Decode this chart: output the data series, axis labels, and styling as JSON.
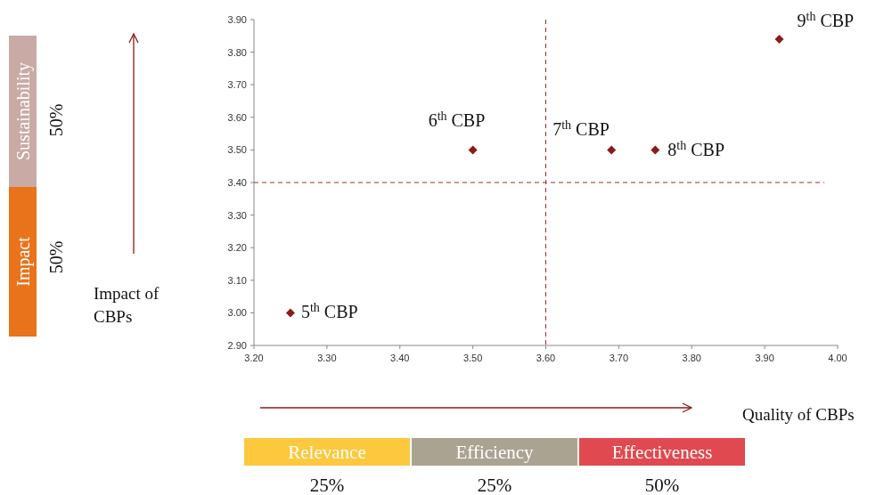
{
  "chart_data": {
    "type": "scatter",
    "xlabel": "Quality of CBPs",
    "ylabel": "Impact of CBPs",
    "x": [
      3.25,
      3.5,
      3.69,
      3.75,
      3.92
    ],
    "values": [
      3.0,
      3.5,
      3.5,
      3.5,
      3.84
    ],
    "color": "#8b1a1a",
    "marker": "diamond",
    "grid": false,
    "xlim": [
      3.2,
      4.0
    ],
    "xticks": [
      {
        "value": 3.2,
        "label": "3.20"
      },
      {
        "value": 3.3,
        "label": "3.30"
      },
      {
        "value": 3.4,
        "label": "3.40"
      },
      {
        "value": 3.5,
        "label": "3.50"
      },
      {
        "value": 3.6,
        "label": "3.60"
      },
      {
        "value": 3.7,
        "label": "3.70"
      },
      {
        "value": 3.8,
        "label": "3.80"
      },
      {
        "value": 3.9,
        "label": "3.90"
      },
      {
        "value": 4.0,
        "label": "4.00"
      }
    ],
    "ylim": [
      2.9,
      3.9
    ],
    "yticks": [
      {
        "value": 2.9,
        "label": "2.90"
      },
      {
        "value": 3.0,
        "label": "3.00"
      },
      {
        "value": 3.1,
        "label": "3.10"
      },
      {
        "value": 3.2,
        "label": "3.20"
      },
      {
        "value": 3.3,
        "label": "3.30"
      },
      {
        "value": 3.4,
        "label": "3.40"
      },
      {
        "value": 3.5,
        "label": "3.50"
      },
      {
        "value": 3.6,
        "label": "3.60"
      },
      {
        "value": 3.7,
        "label": "3.70"
      },
      {
        "value": 3.8,
        "label": "3.80"
      },
      {
        "value": 3.9,
        "label": "3.90"
      }
    ],
    "ref_lines": [
      {
        "axis": "x",
        "value": 3.6,
        "color": "#a0302a",
        "line_style": "dashed"
      },
      {
        "axis": "y",
        "value": 3.4,
        "color": "#a0302a",
        "line_style": "dashed"
      }
    ],
    "annotations": [
      {
        "text": "5$^{th}$ CBP",
        "x": 3.25,
        "y": 3.0
      },
      {
        "text": "6$^{th}$ CBP",
        "x": 3.5,
        "y": 3.5
      },
      {
        "text": "7$^{th}$ CBP",
        "x": 3.69,
        "y": 3.5
      },
      {
        "text": "8$^{th}$ CBP",
        "x": 3.75,
        "y": 3.5
      },
      {
        "text": "9$^{th}$ CBP",
        "x": 3.92,
        "y": 3.84
      },
      "Sustainability",
      "50%",
      "Impact",
      "50%",
      "Relevance",
      "25%",
      "Efficiency",
      "25%",
      "Effectiveness",
      "50%"
    ]
  }
}
